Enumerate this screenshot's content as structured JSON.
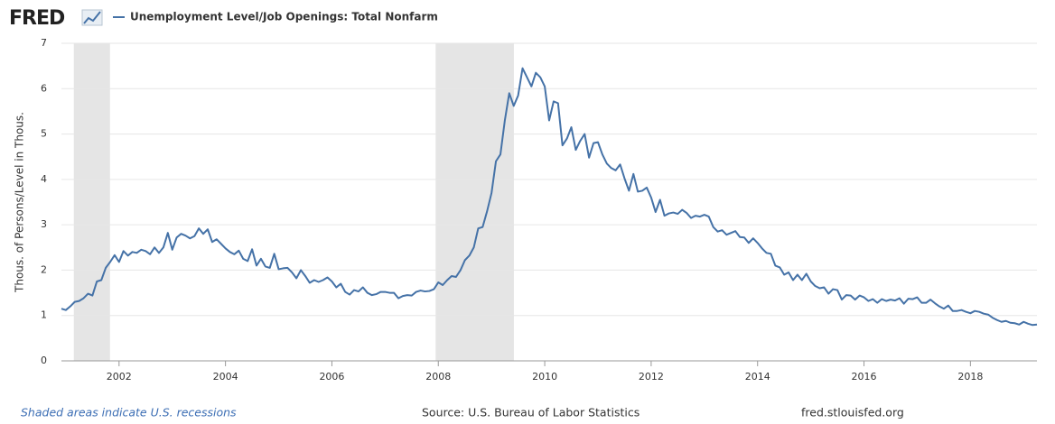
{
  "chart_data": {
    "type": "line",
    "logo": "FRED",
    "title": "Unemployment Level/Job Openings: Total Nonfarm",
    "ylabel": "Thous. of Persons/Level in Thous.",
    "note": "Shaded areas indicate U.S. recessions",
    "source": "Source: U.S. Bureau of Labor Statistics",
    "site": "fred.stlouisfed.org",
    "xlim": [
      2000.917,
      2019.25
    ],
    "xticks": [
      2002,
      2004,
      2006,
      2008,
      2010,
      2012,
      2014,
      2016,
      2018
    ],
    "ylim": [
      0,
      7
    ],
    "yticks": [
      0,
      1,
      2,
      3,
      4,
      5,
      6,
      7
    ],
    "grid": true,
    "recessions": [
      [
        2001.15,
        2001.83
      ],
      [
        2007.95,
        2009.42
      ]
    ],
    "x": [
      2000.917,
      2001.0,
      2001.083,
      2001.167,
      2001.25,
      2001.333,
      2001.417,
      2001.5,
      2001.583,
      2001.667,
      2001.75,
      2001.833,
      2001.917,
      2002.0,
      2002.083,
      2002.167,
      2002.25,
      2002.333,
      2002.417,
      2002.5,
      2002.583,
      2002.667,
      2002.75,
      2002.833,
      2002.917,
      2003.0,
      2003.083,
      2003.167,
      2003.25,
      2003.333,
      2003.417,
      2003.5,
      2003.583,
      2003.667,
      2003.75,
      2003.833,
      2003.917,
      2004.0,
      2004.083,
      2004.167,
      2004.25,
      2004.333,
      2004.417,
      2004.5,
      2004.583,
      2004.667,
      2004.75,
      2004.833,
      2004.917,
      2005.0,
      2005.083,
      2005.167,
      2005.25,
      2005.333,
      2005.417,
      2005.5,
      2005.583,
      2005.667,
      2005.75,
      2005.833,
      2005.917,
      2006.0,
      2006.083,
      2006.167,
      2006.25,
      2006.333,
      2006.417,
      2006.5,
      2006.583,
      2006.667,
      2006.75,
      2006.833,
      2006.917,
      2007.0,
      2007.083,
      2007.167,
      2007.25,
      2007.333,
      2007.417,
      2007.5,
      2007.583,
      2007.667,
      2007.75,
      2007.833,
      2007.917,
      2008.0,
      2008.083,
      2008.167,
      2008.25,
      2008.333,
      2008.417,
      2008.5,
      2008.583,
      2008.667,
      2008.75,
      2008.833,
      2008.917,
      2009.0,
      2009.083,
      2009.167,
      2009.25,
      2009.333,
      2009.417,
      2009.5,
      2009.583,
      2009.667,
      2009.75,
      2009.833,
      2009.917,
      2010.0,
      2010.083,
      2010.167,
      2010.25,
      2010.333,
      2010.417,
      2010.5,
      2010.583,
      2010.667,
      2010.75,
      2010.833,
      2010.917,
      2011.0,
      2011.083,
      2011.167,
      2011.25,
      2011.333,
      2011.417,
      2011.5,
      2011.583,
      2011.667,
      2011.75,
      2011.833,
      2011.917,
      2012.0,
      2012.083,
      2012.167,
      2012.25,
      2012.333,
      2012.417,
      2012.5,
      2012.583,
      2012.667,
      2012.75,
      2012.833,
      2012.917,
      2013.0,
      2013.083,
      2013.167,
      2013.25,
      2013.333,
      2013.417,
      2013.5,
      2013.583,
      2013.667,
      2013.75,
      2013.833,
      2013.917,
      2014.0,
      2014.083,
      2014.167,
      2014.25,
      2014.333,
      2014.417,
      2014.5,
      2014.583,
      2014.667,
      2014.75,
      2014.833,
      2014.917,
      2015.0,
      2015.083,
      2015.167,
      2015.25,
      2015.333,
      2015.417,
      2015.5,
      2015.583,
      2015.667,
      2015.75,
      2015.833,
      2015.917,
      2016.0,
      2016.083,
      2016.167,
      2016.25,
      2016.333,
      2016.417,
      2016.5,
      2016.583,
      2016.667,
      2016.75,
      2016.833,
      2016.917,
      2017.0,
      2017.083,
      2017.167,
      2017.25,
      2017.333,
      2017.417,
      2017.5,
      2017.583,
      2017.667,
      2017.75,
      2017.833,
      2017.917,
      2018.0,
      2018.083,
      2018.167,
      2018.25,
      2018.333,
      2018.417,
      2018.5,
      2018.583,
      2018.667,
      2018.75,
      2018.833,
      2018.917,
      2019.0,
      2019.083,
      2019.167,
      2019.25
    ],
    "series": [
      {
        "name": "Unemployment Level/Job Openings: Total Nonfarm",
        "color": "#4572a7",
        "values": [
          1.15,
          1.12,
          1.2,
          1.3,
          1.32,
          1.38,
          1.48,
          1.44,
          1.75,
          1.78,
          2.05,
          2.18,
          2.33,
          2.18,
          2.42,
          2.32,
          2.4,
          2.38,
          2.45,
          2.42,
          2.35,
          2.5,
          2.38,
          2.5,
          2.82,
          2.45,
          2.72,
          2.8,
          2.76,
          2.7,
          2.75,
          2.92,
          2.8,
          2.9,
          2.62,
          2.68,
          2.58,
          2.48,
          2.4,
          2.35,
          2.43,
          2.25,
          2.2,
          2.46,
          2.1,
          2.25,
          2.08,
          2.05,
          2.36,
          2.02,
          2.04,
          2.05,
          1.95,
          1.82,
          2.0,
          1.87,
          1.72,
          1.78,
          1.74,
          1.78,
          1.84,
          1.75,
          1.62,
          1.7,
          1.52,
          1.46,
          1.56,
          1.53,
          1.62,
          1.5,
          1.45,
          1.47,
          1.52,
          1.52,
          1.5,
          1.5,
          1.38,
          1.43,
          1.45,
          1.44,
          1.52,
          1.55,
          1.53,
          1.54,
          1.58,
          1.73,
          1.67,
          1.78,
          1.87,
          1.85,
          2.0,
          2.22,
          2.32,
          2.5,
          2.92,
          2.95,
          3.3,
          3.7,
          4.4,
          4.55,
          5.3,
          5.9,
          5.62,
          5.85,
          6.45,
          6.25,
          6.05,
          6.35,
          6.25,
          6.05,
          5.3,
          5.72,
          5.68,
          4.75,
          4.9,
          5.15,
          4.65,
          4.85,
          5.0,
          4.48,
          4.8,
          4.82,
          4.55,
          4.35,
          4.25,
          4.2,
          4.33,
          4.02,
          3.75,
          4.12,
          3.73,
          3.75,
          3.82,
          3.6,
          3.28,
          3.55,
          3.2,
          3.25,
          3.27,
          3.24,
          3.33,
          3.26,
          3.15,
          3.2,
          3.18,
          3.22,
          3.18,
          2.95,
          2.85,
          2.88,
          2.78,
          2.82,
          2.86,
          2.73,
          2.72,
          2.6,
          2.7,
          2.6,
          2.48,
          2.38,
          2.36,
          2.1,
          2.06,
          1.9,
          1.95,
          1.78,
          1.9,
          1.78,
          1.92,
          1.75,
          1.65,
          1.6,
          1.62,
          1.48,
          1.58,
          1.56,
          1.35,
          1.45,
          1.44,
          1.35,
          1.44,
          1.4,
          1.32,
          1.36,
          1.28,
          1.36,
          1.32,
          1.35,
          1.33,
          1.38,
          1.26,
          1.37,
          1.36,
          1.4,
          1.28,
          1.28,
          1.35,
          1.27,
          1.2,
          1.15,
          1.22,
          1.1,
          1.1,
          1.12,
          1.08,
          1.05,
          1.1,
          1.08,
          1.04,
          1.02,
          0.95,
          0.9,
          0.86,
          0.88,
          0.84,
          0.83,
          0.8,
          0.86,
          0.82,
          0.79,
          0.8
        ]
      }
    ]
  }
}
